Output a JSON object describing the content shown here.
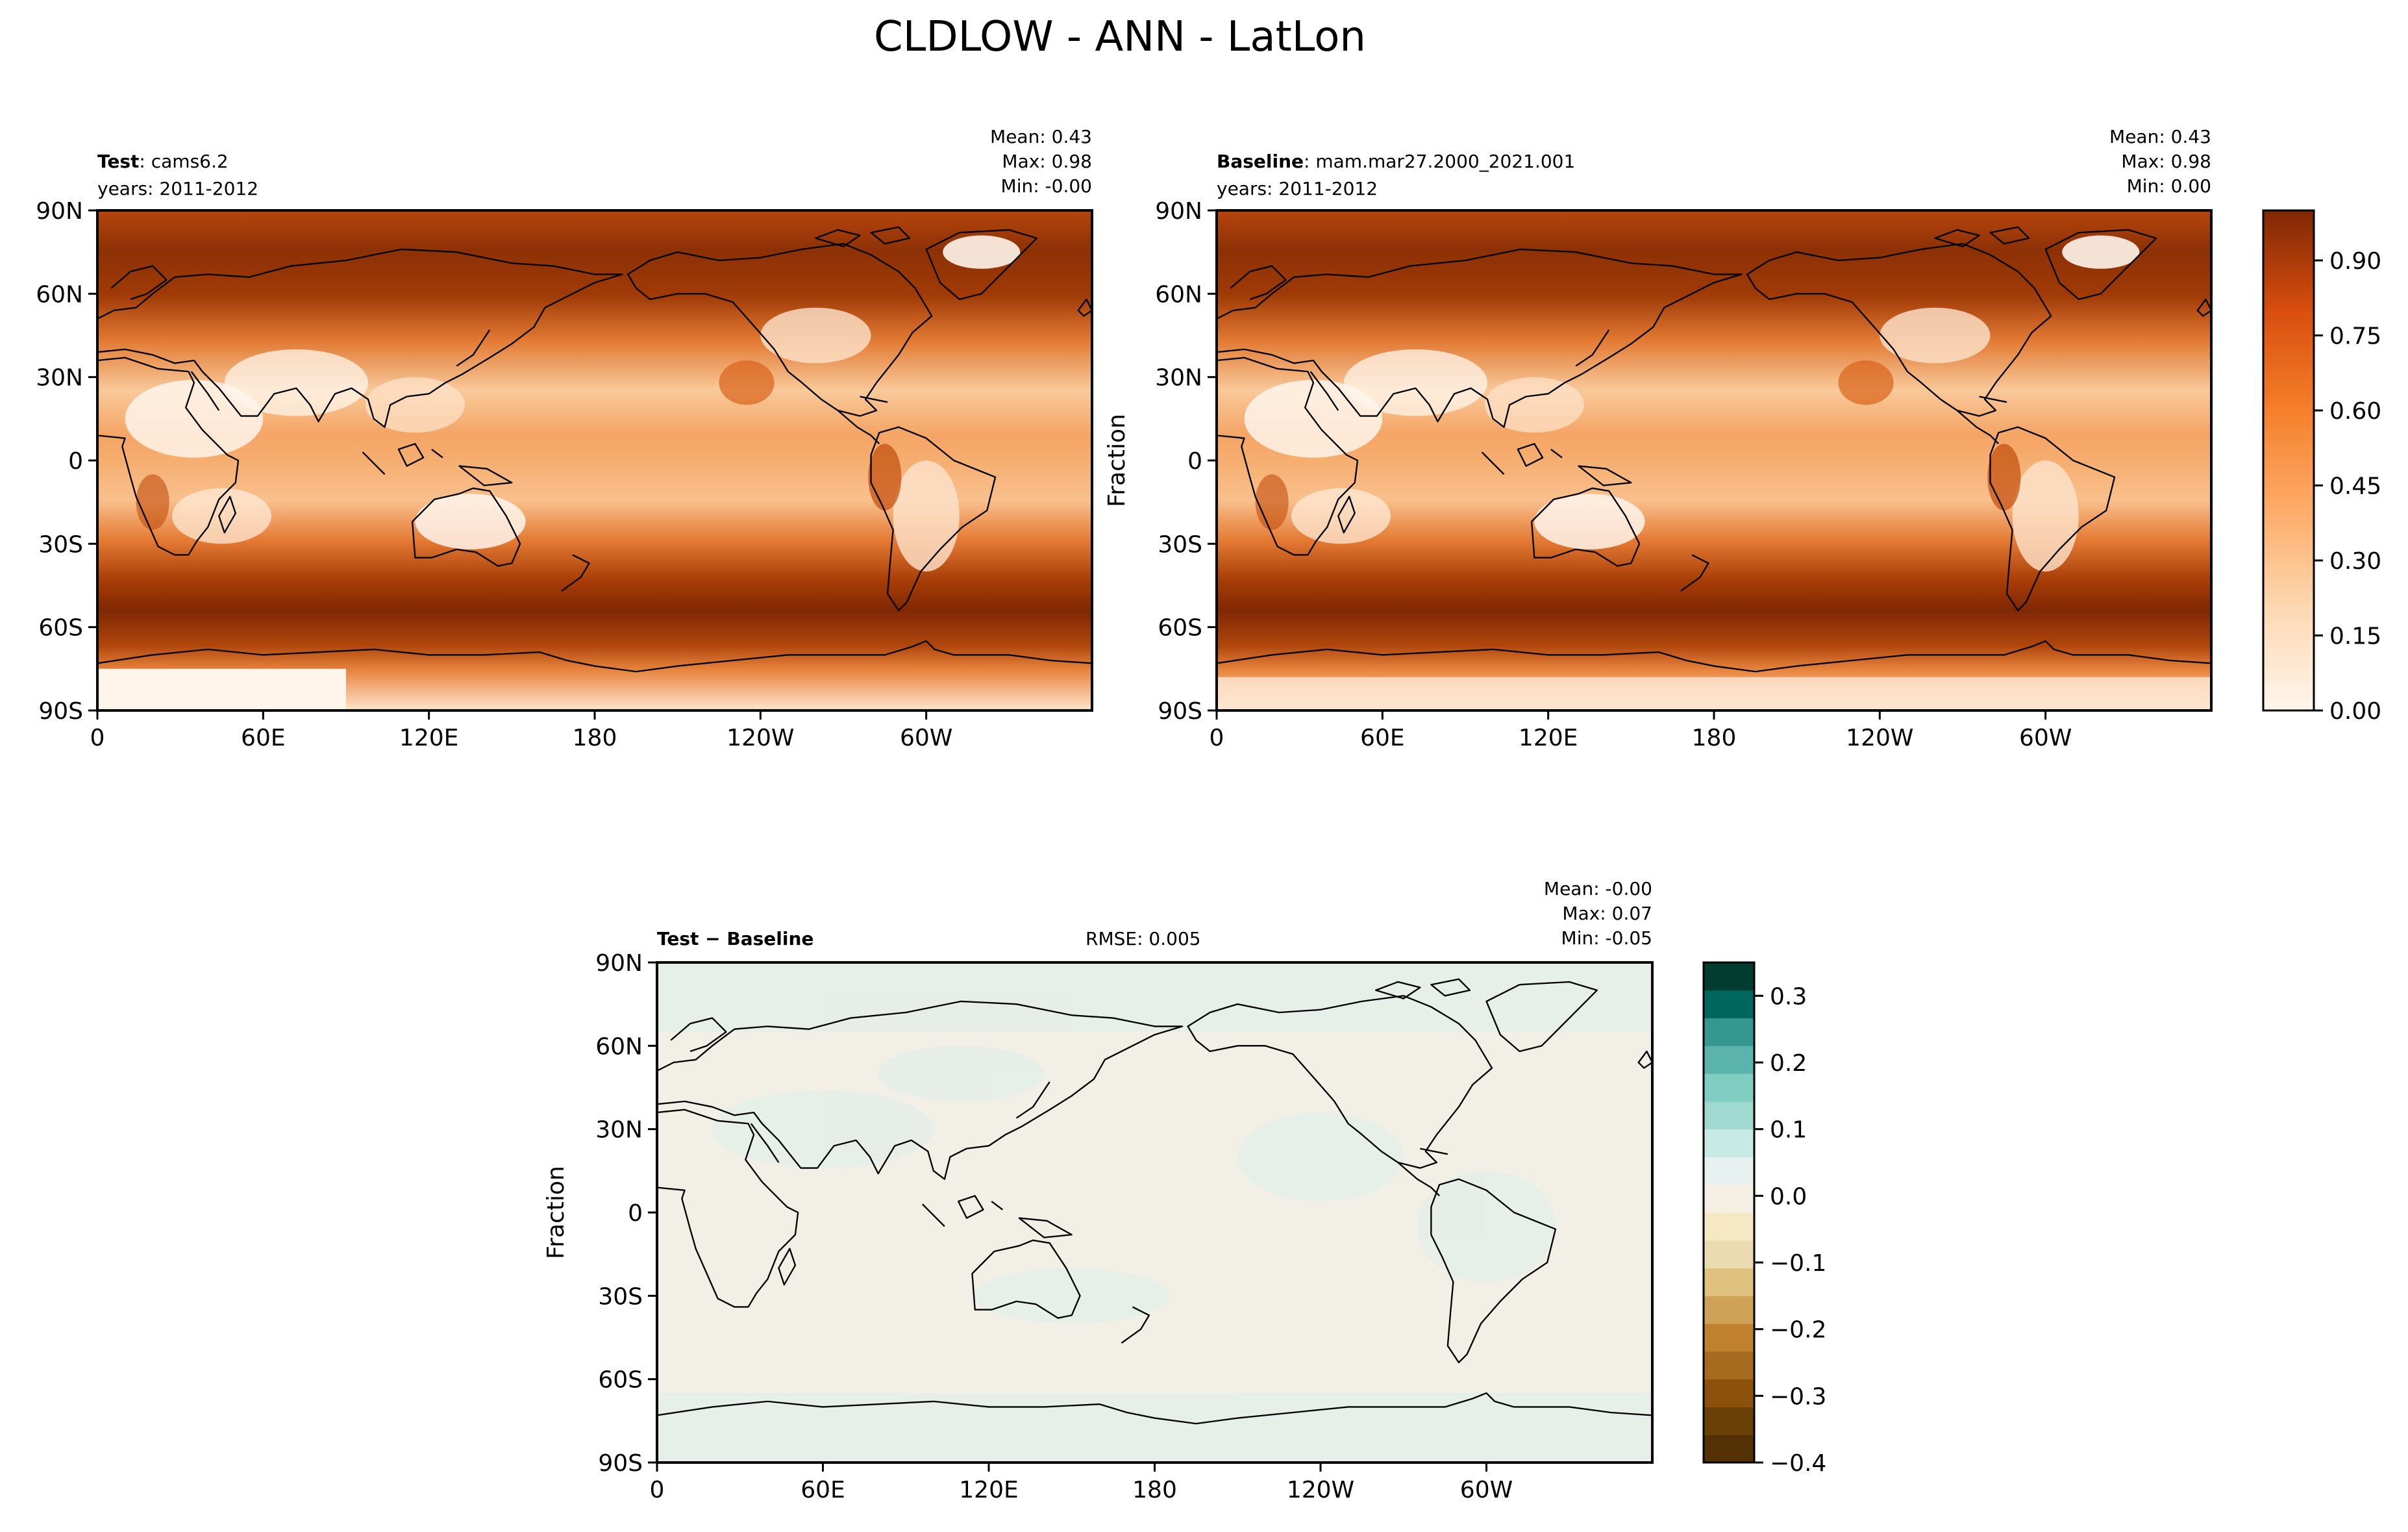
{
  "figure_title": "CLDLOW - ANN - LatLon",
  "colors": {
    "seq_low": "#fff5eb",
    "seq_high": "#7f2704",
    "div_brown_dark": "#543005",
    "div_neutral": "#f5f0e3",
    "div_teal_dark": "#003c30",
    "coast": "#000000"
  },
  "panels": {
    "test": {
      "title_bold": "Test",
      "title_rest": ": cams6.2",
      "years": "years: 2011-2012",
      "stats": [
        "Mean:  0.43",
        "Max:  0.98",
        "Min: -0.00"
      ]
    },
    "baseline": {
      "title_bold": "Baseline",
      "title_rest": ": mam.mar27.2000_2021.001",
      "years": "years: 2011-2012",
      "stats": [
        "Mean:  0.43",
        "Max:  0.98",
        "Min:  0.00"
      ],
      "ylabel": "Fraction"
    },
    "diff": {
      "title_bold": "Test − Baseline",
      "rmse": "RMSE: 0.005",
      "stats": [
        "Mean: -0.00",
        "Max:  0.07",
        "Min: -0.05"
      ],
      "ylabel": "Fraction"
    }
  },
  "chart_data": [
    {
      "type": "heatmap",
      "title": "Test : cams6.2",
      "subtitle": "years: 2011-2012",
      "x_ticks": [
        "0",
        "60E",
        "120E",
        "180",
        "120W",
        "60W"
      ],
      "y_ticks": [
        "90N",
        "60N",
        "30N",
        "0",
        "30S",
        "60S",
        "90S"
      ],
      "xlim": [
        0,
        360
      ],
      "ylim": [
        -90,
        90
      ],
      "stats": {
        "mean": 0.43,
        "max": 0.98,
        "min": -0.0
      },
      "colormap": "Oranges"
    },
    {
      "type": "heatmap",
      "title": "Baseline : mam.mar27.2000_2021.001",
      "subtitle": "years: 2011-2012",
      "ylabel": "Fraction",
      "x_ticks": [
        "0",
        "60E",
        "120E",
        "180",
        "120W",
        "60W"
      ],
      "y_ticks": [
        "90N",
        "60N",
        "30N",
        "0",
        "30S",
        "60S",
        "90S"
      ],
      "xlim": [
        0,
        360
      ],
      "ylim": [
        -90,
        90
      ],
      "stats": {
        "mean": 0.43,
        "max": 0.98,
        "min": 0.0
      },
      "colormap": "Oranges",
      "colorbar": {
        "ticks": [
          "0.00",
          "0.15",
          "0.30",
          "0.45",
          "0.60",
          "0.75",
          "0.90"
        ],
        "tick_values": [
          0,
          0.15,
          0.3,
          0.45,
          0.6,
          0.75,
          0.9
        ],
        "range": [
          0,
          1.0
        ]
      }
    },
    {
      "type": "heatmap",
      "title": "Test − Baseline",
      "annotation": "RMSE: 0.005",
      "ylabel": "Fraction",
      "x_ticks": [
        "0",
        "60E",
        "120E",
        "180",
        "120W",
        "60W"
      ],
      "y_ticks": [
        "90N",
        "60N",
        "30N",
        "0",
        "30S",
        "60S",
        "90S"
      ],
      "xlim": [
        0,
        360
      ],
      "ylim": [
        -90,
        90
      ],
      "stats": {
        "mean": -0.0,
        "max": 0.07,
        "min": -0.05,
        "rmse": 0.005
      },
      "colormap": "BrBG",
      "colorbar": {
        "ticks": [
          "0.3",
          "0.2",
          "0.1",
          "0.0",
          "−0.1",
          "−0.2",
          "−0.3",
          "−0.4"
        ],
        "tick_values": [
          0.3,
          0.2,
          0.1,
          0.0,
          -0.1,
          -0.2,
          -0.3,
          -0.4
        ],
        "range": [
          -0.4,
          0.35
        ]
      }
    }
  ]
}
